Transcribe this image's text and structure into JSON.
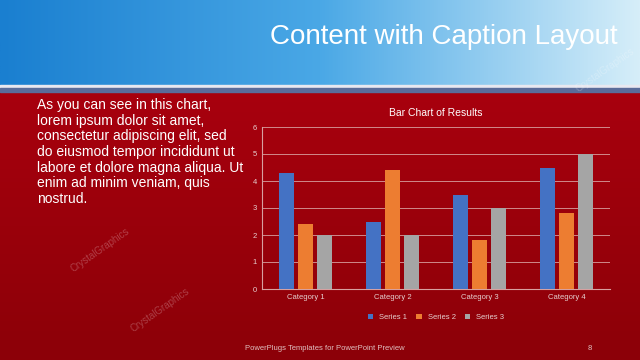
{
  "slide": {
    "title": "Content with Caption Layout",
    "text": "As you can see in this chart, lorem ipsum dolor sit amet, consectetur adipiscing elit, sed do eiusmod tempor incididunt ut labore et dolore magna aliqua. Ut enim ad minim veniam, quis nostrud.",
    "footer": "PowerPlugs Templates for PowerPoint Preview",
    "page_number": 8,
    "watermark": "CrystalGraphics"
  },
  "chart_data": {
    "type": "bar",
    "title": "Bar Chart of Results",
    "categories": [
      "Category 1",
      "Category 2",
      "Category 3",
      "Category 4"
    ],
    "series": [
      {
        "name": "Series 1",
        "color": "#4472c4",
        "values": [
          4.3,
          2.5,
          3.5,
          4.5
        ]
      },
      {
        "name": "Series 2",
        "color": "#ed7d31",
        "values": [
          2.4,
          4.4,
          1.8,
          2.8
        ]
      },
      {
        "name": "Series 3",
        "color": "#a5a5a5",
        "values": [
          2,
          2,
          3,
          5
        ]
      }
    ],
    "ylim": [
      0,
      6
    ],
    "yticks": [
      0,
      1,
      2,
      3,
      4,
      5,
      6
    ],
    "grid": true,
    "legend": "lower center"
  }
}
